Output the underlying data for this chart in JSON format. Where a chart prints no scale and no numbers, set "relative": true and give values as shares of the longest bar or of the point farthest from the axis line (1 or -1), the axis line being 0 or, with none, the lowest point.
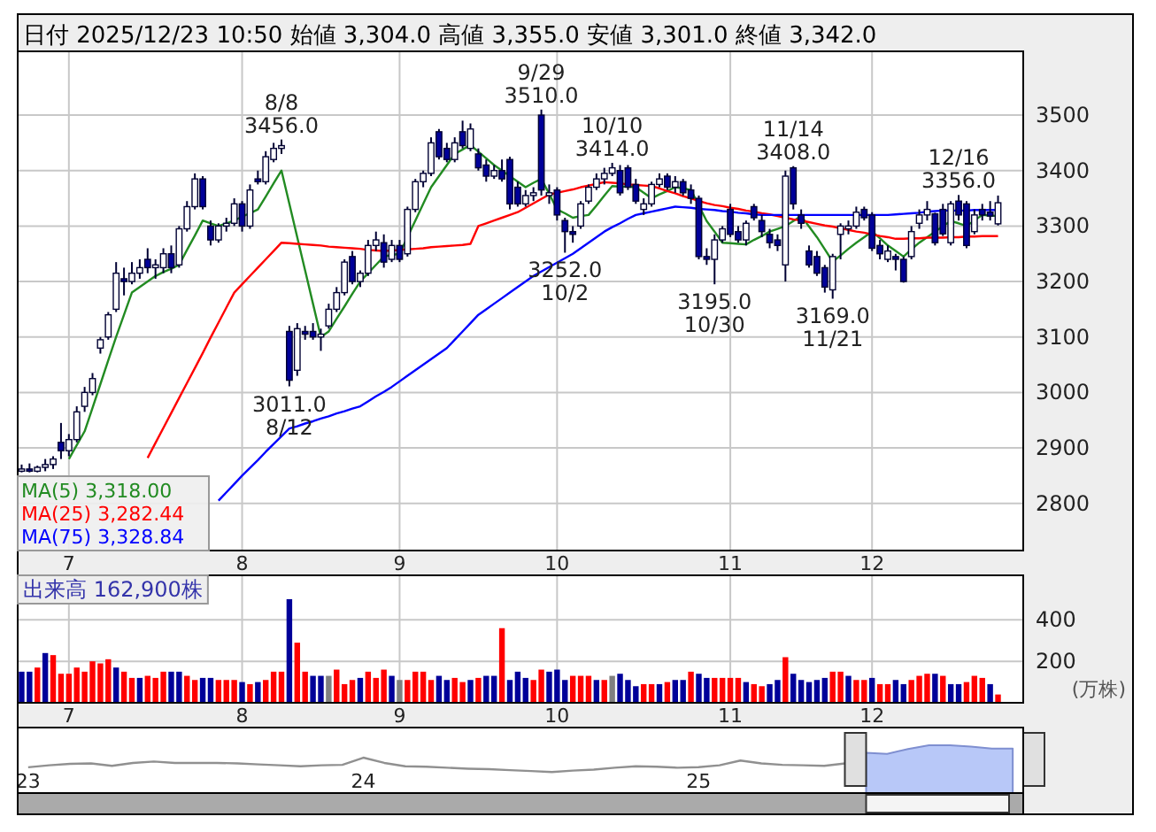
{
  "chart_data": [
    {
      "type": "candlestick",
      "title": "日付 2025/12/23 10:50 始値 3,304.0 高値 3,355.0 安値 3,301.0 終値 3,342.0",
      "categories": [
        null,
        null,
        null,
        null,
        null,
        null,
        "7",
        null,
        null,
        null,
        null,
        null,
        null,
        null,
        null,
        null,
        null,
        null,
        null,
        null,
        null,
        null,
        null,
        null,
        null,
        null,
        null,
        null,
        "8",
        null,
        null,
        null,
        null,
        null,
        null,
        null,
        null,
        null,
        null,
        null,
        null,
        null,
        null,
        null,
        null,
        null,
        null,
        null,
        "9",
        null,
        null,
        null,
        null,
        null,
        null,
        null,
        null,
        null,
        null,
        null,
        null,
        null,
        null,
        null,
        null,
        null,
        null,
        null,
        "10",
        null,
        null,
        null,
        null,
        null,
        null,
        null,
        null,
        null,
        null,
        null,
        null,
        null,
        null,
        null,
        null,
        null,
        null,
        null,
        null,
        null,
        "11",
        null,
        null,
        null,
        null,
        null,
        null,
        null,
        null,
        null,
        null,
        null,
        null,
        null,
        null,
        null,
        null,
        null,
        "12",
        null,
        null,
        null,
        null,
        null,
        null,
        null,
        null,
        null,
        null,
        null,
        null,
        null,
        null,
        null,
        null
      ],
      "ohlc": [
        [
          2858,
          2870,
          2856,
          2862
        ],
        [
          2862,
          2872,
          2856,
          2858
        ],
        [
          2858,
          2868,
          2856,
          2865
        ],
        [
          2865,
          2880,
          2858,
          2870
        ],
        [
          2870,
          2885,
          2862,
          2880
        ],
        [
          2910,
          2945,
          2880,
          2895
        ],
        [
          2895,
          2925,
          2885,
          2915
        ],
        [
          2915,
          2975,
          2910,
          2965
        ],
        [
          2975,
          3010,
          2965,
          3000
        ],
        [
          3000,
          3035,
          2995,
          3025
        ],
        [
          3080,
          3100,
          3070,
          3095
        ],
        [
          3100,
          3145,
          3095,
          3140
        ],
        [
          3150,
          3235,
          3145,
          3215
        ],
        [
          3205,
          3225,
          3175,
          3200
        ],
        [
          3200,
          3235,
          3195,
          3215
        ],
        [
          3215,
          3240,
          3205,
          3225
        ],
        [
          3240,
          3260,
          3215,
          3225
        ],
        [
          3225,
          3240,
          3205,
          3230
        ],
        [
          3225,
          3260,
          3215,
          3250
        ],
        [
          3250,
          3265,
          3215,
          3225
        ],
        [
          3230,
          3300,
          3225,
          3295
        ],
        [
          3295,
          3345,
          3290,
          3335
        ],
        [
          3335,
          3395,
          3330,
          3385
        ],
        [
          3385,
          3390,
          3330,
          3335
        ],
        [
          3300,
          3310,
          3265,
          3275
        ],
        [
          3275,
          3305,
          3270,
          3300
        ],
        [
          3300,
          3315,
          3290,
          3305
        ],
        [
          3305,
          3350,
          3300,
          3340
        ],
        [
          3340,
          3345,
          3290,
          3300
        ],
        [
          3300,
          3375,
          3295,
          3365
        ],
        [
          3385,
          3400,
          3375,
          3380
        ],
        [
          3380,
          3435,
          3375,
          3425
        ],
        [
          3420,
          3450,
          3415,
          3440
        ],
        [
          3440,
          3456,
          3430,
          3445
        ],
        [
          3110,
          3120,
          3011,
          3022
        ],
        [
          3040,
          3125,
          3030,
          3115
        ],
        [
          3110,
          3120,
          3095,
          3105
        ],
        [
          3110,
          3125,
          3095,
          3100
        ],
        [
          3100,
          3115,
          3075,
          3105
        ],
        [
          3120,
          3160,
          3115,
          3150
        ],
        [
          3150,
          3190,
          3145,
          3180
        ],
        [
          3180,
          3240,
          3175,
          3235
        ],
        [
          3245,
          3255,
          3195,
          3200
        ],
        [
          3200,
          3220,
          3190,
          3215
        ],
        [
          3215,
          3275,
          3210,
          3265
        ],
        [
          3265,
          3290,
          3255,
          3275
        ],
        [
          3270,
          3285,
          3225,
          3235
        ],
        [
          3240,
          3275,
          3235,
          3265
        ],
        [
          3265,
          3275,
          3235,
          3240
        ],
        [
          3250,
          3335,
          3245,
          3330
        ],
        [
          3330,
          3385,
          3325,
          3380
        ],
        [
          3380,
          3400,
          3370,
          3395
        ],
        [
          3395,
          3460,
          3390,
          3450
        ],
        [
          3470,
          3475,
          3420,
          3425
        ],
        [
          3440,
          3450,
          3415,
          3420
        ],
        [
          3420,
          3460,
          3415,
          3450
        ],
        [
          3470,
          3490,
          3440,
          3445
        ],
        [
          3440,
          3485,
          3435,
          3475
        ],
        [
          3430,
          3440,
          3400,
          3405
        ],
        [
          3410,
          3420,
          3380,
          3390
        ],
        [
          3390,
          3410,
          3385,
          3400
        ],
        [
          3400,
          3420,
          3380,
          3385
        ],
        [
          3420,
          3425,
          3330,
          3340
        ],
        [
          3370,
          3380,
          3335,
          3340
        ],
        [
          3340,
          3365,
          3335,
          3355
        ],
        [
          3355,
          3370,
          3345,
          3360
        ],
        [
          3500,
          3510,
          3355,
          3365
        ],
        [
          3355,
          3375,
          3340,
          3360
        ],
        [
          3365,
          3370,
          3310,
          3320
        ],
        [
          3310,
          3315,
          3252,
          3290
        ],
        [
          3290,
          3300,
          3270,
          3285
        ],
        [
          3300,
          3345,
          3295,
          3340
        ],
        [
          3345,
          3375,
          3340,
          3370
        ],
        [
          3370,
          3395,
          3365,
          3385
        ],
        [
          3385,
          3405,
          3375,
          3395
        ],
        [
          3395,
          3414,
          3390,
          3405
        ],
        [
          3400,
          3410,
          3355,
          3360
        ],
        [
          3405,
          3410,
          3365,
          3370
        ],
        [
          3375,
          3385,
          3340,
          3345
        ],
        [
          3330,
          3350,
          3320,
          3340
        ],
        [
          3340,
          3380,
          3335,
          3375
        ],
        [
          3375,
          3395,
          3370,
          3385
        ],
        [
          3390,
          3395,
          3365,
          3370
        ],
        [
          3370,
          3390,
          3360,
          3380
        ],
        [
          3380,
          3385,
          3355,
          3360
        ],
        [
          3365,
          3375,
          3340,
          3350
        ],
        [
          3350,
          3355,
          3240,
          3245
        ],
        [
          3245,
          3260,
          3230,
          3240
        ],
        [
          3240,
          3285,
          3195,
          3275
        ],
        [
          3275,
          3300,
          3270,
          3295
        ],
        [
          3330,
          3340,
          3280,
          3285
        ],
        [
          3290,
          3300,
          3270,
          3275
        ],
        [
          3275,
          3310,
          3265,
          3305
        ],
        [
          3335,
          3340,
          3310,
          3315
        ],
        [
          3310,
          3320,
          3280,
          3290
        ],
        [
          3285,
          3295,
          3260,
          3270
        ],
        [
          3275,
          3285,
          3255,
          3265
        ],
        [
          3230,
          3400,
          3200,
          3390
        ],
        [
          3405,
          3408,
          3330,
          3340
        ],
        [
          3320,
          3330,
          3295,
          3305
        ],
        [
          3255,
          3265,
          3225,
          3230
        ],
        [
          3245,
          3255,
          3210,
          3215
        ],
        [
          3225,
          3230,
          3180,
          3190
        ],
        [
          3185,
          3250,
          3169,
          3245
        ],
        [
          3285,
          3305,
          3240,
          3300
        ],
        [
          3295,
          3310,
          3285,
          3300
        ],
        [
          3300,
          3335,
          3295,
          3325
        ],
        [
          3330,
          3335,
          3310,
          3315
        ],
        [
          3320,
          3325,
          3255,
          3260
        ],
        [
          3265,
          3275,
          3240,
          3250
        ],
        [
          3240,
          3265,
          3235,
          3255
        ],
        [
          3245,
          3250,
          3220,
          3240
        ],
        [
          3240,
          3245,
          3198,
          3200
        ],
        [
          3245,
          3300,
          3240,
          3290
        ],
        [
          3305,
          3330,
          3295,
          3320
        ],
        [
          3320,
          3345,
          3310,
          3330
        ],
        [
          3322,
          3324,
          3265,
          3270
        ],
        [
          3330,
          3340,
          3282,
          3286
        ],
        [
          3270,
          3345,
          3265,
          3340
        ],
        [
          3345,
          3356,
          3310,
          3320
        ],
        [
          3340,
          3345,
          3260,
          3265
        ],
        [
          3290,
          3330,
          3285,
          3320
        ],
        [
          3330,
          3340,
          3310,
          3320
        ],
        [
          3325,
          3345,
          3310,
          3318
        ],
        [
          3304,
          3355,
          3301,
          3342
        ]
      ],
      "colors": [
        "#ffffff",
        "#000099",
        "#ffffff",
        "#ffffff",
        "#ffffff",
        "#000099",
        "#ffffff",
        "#ffffff",
        "#ffffff",
        "#ffffff",
        "#ffffff",
        "#ffffff",
        "#ffffff",
        "#000099",
        "#ffffff",
        "#ffffff",
        "#000099",
        "#ffffff",
        "#ffffff",
        "#000099",
        "#ffffff",
        "#ffffff",
        "#ffffff",
        "#000099",
        "#000099",
        "#ffffff",
        "#ffffff",
        "#ffffff",
        "#000099",
        "#ffffff",
        "#000099",
        "#ffffff",
        "#ffffff",
        "#ffffff",
        "#000099",
        "#ffffff",
        "#000099",
        "#000099",
        "#ffffff",
        "#ffffff",
        "#ffffff",
        "#ffffff",
        "#000099",
        "#ffffff",
        "#ffffff",
        "#ffffff",
        "#000099",
        "#ffffff",
        "#000099",
        "#ffffff",
        "#ffffff",
        "#ffffff",
        "#ffffff",
        "#000099",
        "#000099",
        "#ffffff",
        "#000099",
        "#ffffff",
        "#000099",
        "#000099",
        "#ffffff",
        "#000099",
        "#000099",
        "#000099",
        "#ffffff",
        "#ffffff",
        "#000099",
        "#ffffff",
        "#000099",
        "#000099",
        "#000099",
        "#ffffff",
        "#ffffff",
        "#ffffff",
        "#ffffff",
        "#ffffff",
        "#000099",
        "#000099",
        "#000099",
        "#ffffff",
        "#ffffff",
        "#ffffff",
        "#000099",
        "#ffffff",
        "#000099",
        "#000099",
        "#000099",
        "#000099",
        "#ffffff",
        "#ffffff",
        "#000099",
        "#000099",
        "#ffffff",
        "#000099",
        "#000099",
        "#000099",
        "#000099",
        "#ffffff",
        "#000099",
        "#000099",
        "#000099",
        "#000099",
        "#000099",
        "#ffffff",
        "#ffffff",
        "#ffffff",
        "#ffffff",
        "#000099",
        "#000099",
        "#000099",
        "#ffffff",
        "#000099",
        "#000099",
        "#ffffff",
        "#ffffff",
        "#ffffff",
        "#000099",
        "#000099",
        "#ffffff",
        "#000099",
        "#000099",
        "#ffffff",
        "#000099",
        "#000099",
        "#ffffff"
      ],
      "series": [
        {
          "type": "line",
          "name": "MA(5) 3,318.00",
          "color": "#228b22",
          "values": [
            null,
            null,
            null,
            null,
            null,
            null,
            2880,
            2905,
            2930,
            2972,
            3015,
            3058,
            3100,
            3140,
            3180,
            3190,
            3200,
            3210,
            3217,
            3223,
            3230,
            3257,
            3283,
            3310,
            3305,
            3300,
            3305,
            3310,
            3317,
            3323,
            3330,
            3353,
            3377,
            3400,
            3340,
            3280,
            3220,
            3160,
            3100,
            3110,
            3133,
            3155,
            3178,
            3200,
            3215,
            3230,
            3245,
            3248,
            3250,
            3280,
            3310,
            3340,
            3370,
            3390,
            3410,
            3430,
            3438,
            3446,
            3434,
            3422,
            3410,
            3400,
            3390,
            3380,
            3370,
            3378,
            3385,
            3358,
            3330,
            3323,
            3315,
            3318,
            3320,
            3337,
            3355,
            3372,
            3371,
            3371,
            3370,
            3360,
            3350,
            3357,
            3363,
            3370,
            3368,
            3365,
            3337,
            3309,
            3290,
            3270,
            3269,
            3268,
            3267,
            3275,
            3282,
            3290,
            3295,
            3300,
            3309,
            3318,
            3299,
            3280,
            3258,
            3236,
            3247,
            3259,
            3270,
            3280,
            3290,
            3278,
            3265,
            3255,
            3245,
            3258,
            3270,
            3280,
            3290,
            3300,
            3309,
            3305,
            3300,
            3310,
            3320,
            3319,
            3318
          ]
        },
        {
          "type": "line",
          "name": "MA(25) 3,282.44",
          "color": "#ff0000",
          "values": [
            null,
            null,
            null,
            null,
            null,
            null,
            null,
            null,
            null,
            null,
            null,
            null,
            null,
            null,
            null,
            null,
            2882,
            2909,
            2936,
            2963,
            2990,
            3017,
            3044,
            3071,
            3099,
            3126,
            3153,
            3180,
            3195,
            3210,
            3225,
            3240,
            3255,
            3270,
            3269,
            3268,
            3267,
            3266,
            3265,
            3263,
            3262,
            3261,
            3260,
            3259,
            3257,
            3256,
            3255,
            3256,
            3257,
            3258,
            3259,
            3260,
            3262,
            3263,
            3264,
            3265,
            3266,
            3268,
            3300,
            3305,
            3310,
            3315,
            3320,
            3325,
            3333,
            3341,
            3349,
            3357,
            3360,
            3363,
            3366,
            3370,
            3373,
            3376,
            3379,
            3378,
            3377,
            3375,
            3374,
            3373,
            3372,
            3368,
            3363,
            3359,
            3354,
            3350,
            3345,
            3341,
            3338,
            3336,
            3333,
            3331,
            3328,
            3326,
            3323,
            3321,
            3318,
            3315,
            3312,
            3310,
            3307,
            3304,
            3301,
            3299,
            3296,
            3293,
            3290,
            3288,
            3285,
            3282,
            3280,
            3277,
            3277,
            3278,
            3278,
            3279,
            3279,
            3279,
            3280,
            3280,
            3281,
            3281,
            3282,
            3282,
            3282
          ]
        },
        {
          "type": "line",
          "name": "MA(75) 3,328.84",
          "color": "#0000ff",
          "values": [
            null,
            null,
            null,
            null,
            null,
            null,
            null,
            null,
            null,
            null,
            null,
            null,
            null,
            null,
            null,
            null,
            null,
            null,
            null,
            null,
            null,
            null,
            null,
            null,
            null,
            2805,
            2820,
            2835,
            2850,
            2864,
            2878,
            2893,
            2907,
            2921,
            2935,
            2939,
            2944,
            2948,
            2953,
            2957,
            2962,
            2966,
            2971,
            2975,
            2984,
            2993,
            3001,
            3010,
            3020,
            3030,
            3040,
            3050,
            3060,
            3070,
            3080,
            3095,
            3110,
            3125,
            3140,
            3150,
            3160,
            3170,
            3180,
            3190,
            3200,
            3210,
            3218,
            3226,
            3234,
            3242,
            3250,
            3260,
            3270,
            3280,
            3290,
            3298,
            3305,
            3313,
            3320,
            3323,
            3326,
            3329,
            3332,
            3335,
            3334,
            3333,
            3331,
            3330,
            3329,
            3327,
            3326,
            3324,
            3323,
            3321,
            3320,
            3320,
            3320,
            3320,
            3320,
            3320,
            3320,
            3320,
            3320,
            3320,
            3320,
            3320,
            3320,
            3320,
            3320,
            3320,
            3320,
            3321,
            3322,
            3323,
            3324,
            3326,
            3327,
            3328,
            3328,
            3328,
            3328,
            3329,
            3329,
            3329,
            3329
          ]
        }
      ],
      "ylim": [
        2715,
        3615
      ],
      "yticks": [
        2800,
        2900,
        3000,
        3100,
        3200,
        3300,
        3400,
        3500
      ],
      "grid": true,
      "legend": "bottom left",
      "annotations": [
        {
          "text": "8/8\n3456.0",
          "y": 3456
        },
        {
          "text": "3011.0\n8/12",
          "y": 3011
        },
        {
          "text": "9/29\n3510.0",
          "y": 3510
        },
        {
          "text": "3252.0\n10/2",
          "y": 3252
        },
        {
          "text": "10/10\n3414.0",
          "y": 3414
        },
        {
          "text": "3195.0\n10/30",
          "y": 3195
        },
        {
          "text": "11/14\n3408.0",
          "y": 3408
        },
        {
          "text": "3169.0\n11/21",
          "y": 3169
        },
        {
          "text": "12/16\n3356.0",
          "y": 3356
        }
      ]
    },
    {
      "type": "bar",
      "ylabel": "(万株)",
      "categories": [
        null,
        null,
        null,
        null,
        null,
        null,
        "7",
        null,
        null,
        null,
        null,
        null,
        null,
        null,
        null,
        null,
        null,
        null,
        null,
        null,
        null,
        null,
        null,
        null,
        null,
        null,
        null,
        null,
        "8",
        null,
        null,
        null,
        null,
        null,
        null,
        null,
        null,
        null,
        null,
        null,
        null,
        null,
        null,
        null,
        null,
        null,
        null,
        null,
        "9",
        null,
        null,
        null,
        null,
        null,
        null,
        null,
        null,
        null,
        null,
        null,
        null,
        null,
        null,
        null,
        null,
        null,
        null,
        null,
        "10",
        null,
        null,
        null,
        null,
        null,
        null,
        null,
        null,
        null,
        null,
        null,
        null,
        null,
        null,
        null,
        null,
        null,
        null,
        null,
        null,
        null,
        "11",
        null,
        null,
        null,
        null,
        null,
        null,
        null,
        null,
        null,
        null,
        null,
        null,
        null,
        null,
        null,
        null,
        null,
        "12",
        null,
        null,
        null,
        null,
        null,
        null,
        null,
        null,
        null,
        null,
        null,
        null,
        null,
        null,
        null,
        null
      ],
      "values": [
        150,
        150,
        170,
        240,
        230,
        140,
        140,
        170,
        150,
        200,
        190,
        210,
        170,
        150,
        120,
        120,
        130,
        120,
        150,
        150,
        150,
        130,
        110,
        120,
        120,
        110,
        110,
        110,
        100,
        90,
        100,
        110,
        150,
        150,
        500,
        290,
        150,
        130,
        130,
        130,
        160,
        90,
        110,
        120,
        150,
        120,
        160,
        130,
        110,
        110,
        150,
        150,
        110,
        130,
        110,
        120,
        100,
        110,
        120,
        130,
        130,
        360,
        110,
        150,
        120,
        110,
        160,
        150,
        160,
        110,
        130,
        130,
        130,
        110,
        110,
        130,
        140,
        110,
        80,
        90,
        90,
        90,
        100,
        110,
        110,
        150,
        140,
        120,
        120,
        120,
        120,
        120,
        100,
        90,
        80,
        90,
        110,
        220,
        140,
        110,
        100,
        110,
        120,
        150,
        150,
        130,
        110,
        110,
        120,
        90,
        90,
        110,
        90,
        110,
        130,
        140,
        140,
        130,
        90,
        90,
        100,
        130,
        120,
        90,
        40
      ],
      "colors": [
        "#000099",
        "#000099",
        "#ff0000",
        "#000099",
        "#ff0000",
        "#ff0000",
        "#ff0000",
        "#ff0000",
        "#ff0000",
        "#ff0000",
        "#ff0000",
        "#ff0000",
        "#000099",
        "#ff0000",
        "#ff0000",
        "#000099",
        "#ff0000",
        "#ff0000",
        "#ff0000",
        "#000099",
        "#000099",
        "#ff0000",
        "#ff0000",
        "#000099",
        "#000099",
        "#ff0000",
        "#ff0000",
        "#ff0000",
        "#000099",
        "#ff0000",
        "#000099",
        "#ff0000",
        "#ff0000",
        "#ff0000",
        "#000099",
        "#ff0000",
        "#ff0000",
        "#000099",
        "#000099",
        "#808080",
        "#ff0000",
        "#ff0000",
        "#ff0000",
        "#000099",
        "#ff0000",
        "#ff0000",
        "#ff0000",
        "#000099",
        "#808080",
        "#ff0000",
        "#ff0000",
        "#ff0000",
        "#ff0000",
        "#000099",
        "#000099",
        "#ff0000",
        "#ff0000",
        "#000099",
        "#ff0000",
        "#000099",
        "#000099",
        "#ff0000",
        "#000099",
        "#000099",
        "#000099",
        "#ff0000",
        "#ff0000",
        "#000099",
        "#000099",
        "#000099",
        "#ff0000",
        "#ff0000",
        "#ff0000",
        "#000099",
        "#ff0000",
        "#808080",
        "#000099",
        "#000099",
        "#000099",
        "#ff0000",
        "#ff0000",
        "#000099",
        "#ff0000",
        "#000099",
        "#000099",
        "#ff0000",
        "#000099",
        "#000099",
        "#ff0000",
        "#ff0000",
        "#ff0000",
        "#ff0000",
        "#000099",
        "#ff0000",
        "#ff0000",
        "#000099",
        "#000099",
        "#ff0000",
        "#000099",
        "#000099",
        "#000099",
        "#000099",
        "#000099",
        "#ff0000",
        "#ff0000",
        "#000099",
        "#ff0000",
        "#ff0000",
        "#000099",
        "#ff0000",
        "#ff0000",
        "#000099",
        "#000099",
        "#ff0000",
        "#ff0000",
        "#ff0000",
        "#000099",
        "#ff0000",
        "#000099",
        "#000099",
        "#ff0000",
        "#ff0000",
        "#ff0000",
        "#000099",
        "#ff0000"
      ],
      "ylim": [
        0,
        615
      ],
      "yticks": [
        200,
        400
      ],
      "grid": true,
      "annotations": [
        "出来高 162,900株"
      ]
    },
    {
      "type": "line",
      "relative": true,
      "categories": [
        "23",
        null,
        null,
        null,
        null,
        null,
        null,
        null,
        null,
        null,
        null,
        null,
        null,
        null,
        null,
        null,
        "24",
        null,
        null,
        null,
        null,
        null,
        null,
        null,
        null,
        null,
        null,
        null,
        null,
        null,
        null,
        null,
        "25",
        null,
        null,
        null,
        null,
        null,
        null,
        null,
        null,
        null,
        null,
        null,
        null,
        null,
        null,
        null
      ],
      "series": [
        {
          "type": "line",
          "color": "#909090",
          "values": [
            0.54,
            0.58,
            0.61,
            0.62,
            0.57,
            0.63,
            0.66,
            0.63,
            0.63,
            0.63,
            0.62,
            0.6,
            0.58,
            0.56,
            0.58,
            0.59,
            0.74,
            0.63,
            0.56,
            0.55,
            0.53,
            0.51,
            0.5,
            0.48,
            0.46,
            0.44,
            0.47,
            0.49,
            0.53,
            0.56,
            0.55,
            0.53,
            0.54,
            0.58,
            0.68,
            0.62,
            0.59,
            0.58,
            0.57,
            0.62,
            0.84,
            null,
            null,
            null,
            null,
            null,
            null,
            null
          ]
        },
        {
          "type": "area",
          "color": "#b8c8f8",
          "values": [
            null,
            null,
            null,
            null,
            null,
            null,
            null,
            null,
            null,
            null,
            null,
            null,
            null,
            null,
            null,
            null,
            null,
            null,
            null,
            null,
            null,
            null,
            null,
            null,
            null,
            null,
            null,
            null,
            null,
            null,
            null,
            null,
            null,
            null,
            null,
            null,
            null,
            null,
            null,
            null,
            0.84,
            0.82,
            0.92,
            1,
            1,
            0.97,
            0.93,
            0.93
          ]
        }
      ],
      "tick_labels": "x"
    }
  ]
}
